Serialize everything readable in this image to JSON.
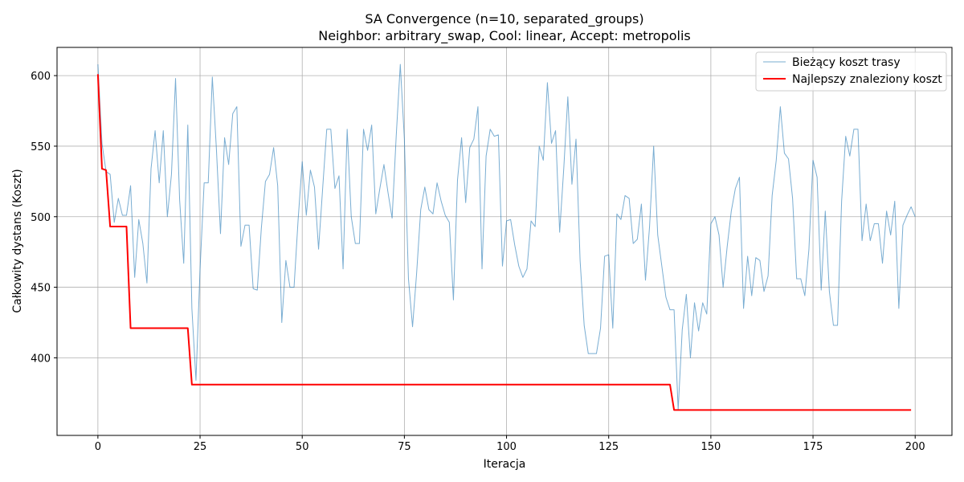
{
  "chart_data": {
    "type": "line",
    "title": "SA Convergence (n=10, separated_groups)",
    "subtitle": "Neighbor: arbitrary_swap, Cool: linear, Accept: metropolis",
    "xlabel": "Iteracja",
    "ylabel": "Całkowity dystans (Koszt)",
    "xlim": [
      -10,
      209
    ],
    "ylim": [
      345,
      620
    ],
    "xticks": [
      0,
      25,
      50,
      75,
      100,
      125,
      150,
      175,
      200
    ],
    "yticks": [
      400,
      450,
      500,
      550,
      600
    ],
    "grid": true,
    "legend_position": "top-right",
    "series": [
      {
        "name": "Bieżący koszt trasy",
        "color": "#1f77b4",
        "x_start": 0,
        "x_step": 1,
        "values": [
          608,
          552,
          532,
          530,
          496,
          513,
          501,
          501,
          522,
          457,
          498,
          481,
          453,
          534,
          561,
          524,
          561,
          500,
          530,
          598,
          512,
          467,
          565,
          435,
          384,
          463,
          524,
          524,
          599,
          548,
          488,
          556,
          537,
          573,
          578,
          479,
          494,
          494,
          449,
          448,
          492,
          525,
          530,
          549,
          522,
          425,
          469,
          450,
          450,
          498,
          539,
          501,
          533,
          521,
          477,
          520,
          562,
          562,
          520,
          529,
          463,
          562,
          500,
          481,
          481,
          562,
          547,
          565,
          502,
          520,
          537,
          517,
          499,
          557,
          608,
          555,
          456,
          422,
          460,
          505,
          521,
          505,
          502,
          524,
          511,
          501,
          496,
          441,
          526,
          556,
          510,
          549,
          555,
          578,
          463,
          543,
          562,
          557,
          558,
          465,
          497,
          498,
          480,
          465,
          457,
          463,
          497,
          493,
          550,
          540,
          595,
          552,
          561,
          489,
          534,
          585,
          523,
          555,
          469,
          423,
          403,
          403,
          403,
          421,
          472,
          473,
          421,
          502,
          498,
          515,
          513,
          481,
          484,
          509,
          455,
          493,
          550,
          487,
          465,
          443,
          434,
          434,
          363,
          420,
          445,
          400,
          439,
          419,
          439,
          431,
          495,
          500,
          487,
          450,
          479,
          504,
          520,
          528,
          435,
          472,
          444,
          471,
          469,
          447,
          458,
          515,
          540,
          578,
          545,
          541,
          513,
          456,
          456,
          444,
          477,
          540,
          528,
          448,
          504,
          447,
          423,
          423,
          511,
          557,
          543,
          562,
          562,
          483,
          509,
          483,
          495,
          495,
          467,
          504,
          487,
          511,
          435,
          494,
          501,
          507,
          500
        ]
      },
      {
        "name": "Najlepszy znaleziony koszt",
        "color": "#ff0000",
        "x_start": 0,
        "x_step": 1,
        "values": [
          601,
          534,
          533,
          493,
          493,
          493,
          493,
          493,
          421,
          421,
          421,
          421,
          421,
          421,
          421,
          421,
          421,
          421,
          421,
          421,
          421,
          421,
          421,
          381,
          381,
          381,
          381,
          381,
          381,
          381,
          381,
          381,
          381,
          381,
          381,
          381,
          381,
          381,
          381,
          381,
          381,
          381,
          381,
          381,
          381,
          381,
          381,
          381,
          381,
          381,
          381,
          381,
          381,
          381,
          381,
          381,
          381,
          381,
          381,
          381,
          381,
          381,
          381,
          381,
          381,
          381,
          381,
          381,
          381,
          381,
          381,
          381,
          381,
          381,
          381,
          381,
          381,
          381,
          381,
          381,
          381,
          381,
          381,
          381,
          381,
          381,
          381,
          381,
          381,
          381,
          381,
          381,
          381,
          381,
          381,
          381,
          381,
          381,
          381,
          381,
          381,
          381,
          381,
          381,
          381,
          381,
          381,
          381,
          381,
          381,
          381,
          381,
          381,
          381,
          381,
          381,
          381,
          381,
          381,
          381,
          381,
          381,
          381,
          381,
          381,
          381,
          381,
          381,
          381,
          381,
          381,
          381,
          381,
          381,
          381,
          381,
          381,
          381,
          381,
          381,
          381,
          363,
          363,
          363,
          363,
          363,
          363,
          363,
          363,
          363,
          363,
          363,
          363,
          363,
          363,
          363,
          363,
          363,
          363,
          363,
          363,
          363,
          363,
          363,
          363,
          363,
          363,
          363,
          363,
          363,
          363,
          363,
          363,
          363,
          363,
          363,
          363,
          363,
          363,
          363,
          363,
          363,
          363,
          363,
          363,
          363,
          363,
          363,
          363,
          363,
          363,
          363,
          363,
          363,
          363,
          363,
          363,
          363,
          363,
          363
        ]
      }
    ]
  }
}
